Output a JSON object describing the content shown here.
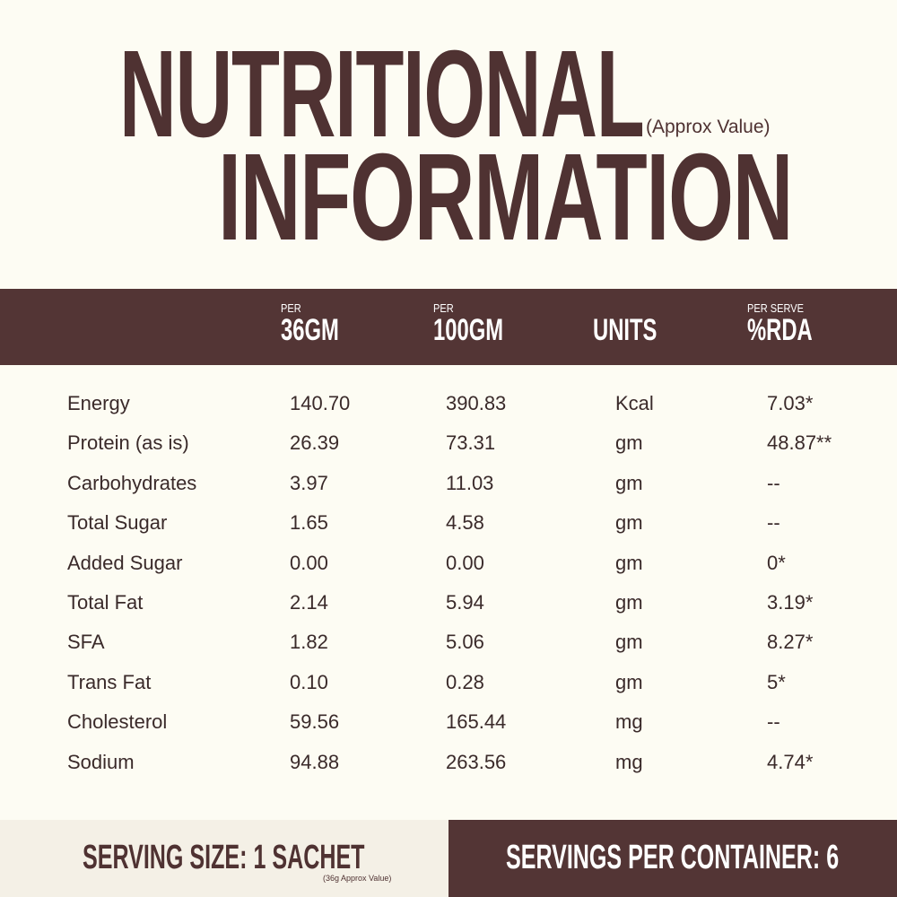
{
  "title": {
    "line1": "NUTRITIONAL",
    "line2": "INFORMATION",
    "note": "(Approx Value)"
  },
  "header": [
    {
      "small": "PER",
      "big": "36GM"
    },
    {
      "small": "PER",
      "big": "100GM"
    },
    {
      "small": "",
      "big": "UNITS"
    },
    {
      "small": "PER SERVE",
      "big": "%RDA"
    }
  ],
  "rows": [
    [
      "Energy",
      "140.70",
      "390.83",
      "Kcal",
      "7.03*"
    ],
    [
      "Protein (as is)",
      "26.39",
      "73.31",
      "gm",
      "48.87**"
    ],
    [
      "Carbohydrates",
      "3.97",
      "11.03",
      "gm",
      "--"
    ],
    [
      "Total Sugar",
      "1.65",
      "4.58",
      "gm",
      "--"
    ],
    [
      "Added Sugar",
      "0.00",
      "0.00",
      "gm",
      "0*"
    ],
    [
      "Total Fat",
      "2.14",
      "5.94",
      "gm",
      "3.19*"
    ],
    [
      "SFA",
      "1.82",
      "5.06",
      "gm",
      "8.27*"
    ],
    [
      "Trans Fat",
      "0.10",
      "0.28",
      "gm",
      "5*"
    ],
    [
      "Cholesterol",
      "59.56",
      "165.44",
      "mg",
      "--"
    ],
    [
      "Sodium",
      "94.88",
      "263.56",
      "mg",
      "4.74*"
    ]
  ],
  "footer": {
    "serving_size": "SERVING SIZE: 1 SACHET",
    "serving_note": "(36g Approx Value)",
    "servings_per_container": "SERVINGS PER CONTAINER: 6"
  },
  "colors": {
    "brown": "#533535",
    "background": "#fdfcf3",
    "footer_left": "#f4f0e6"
  }
}
